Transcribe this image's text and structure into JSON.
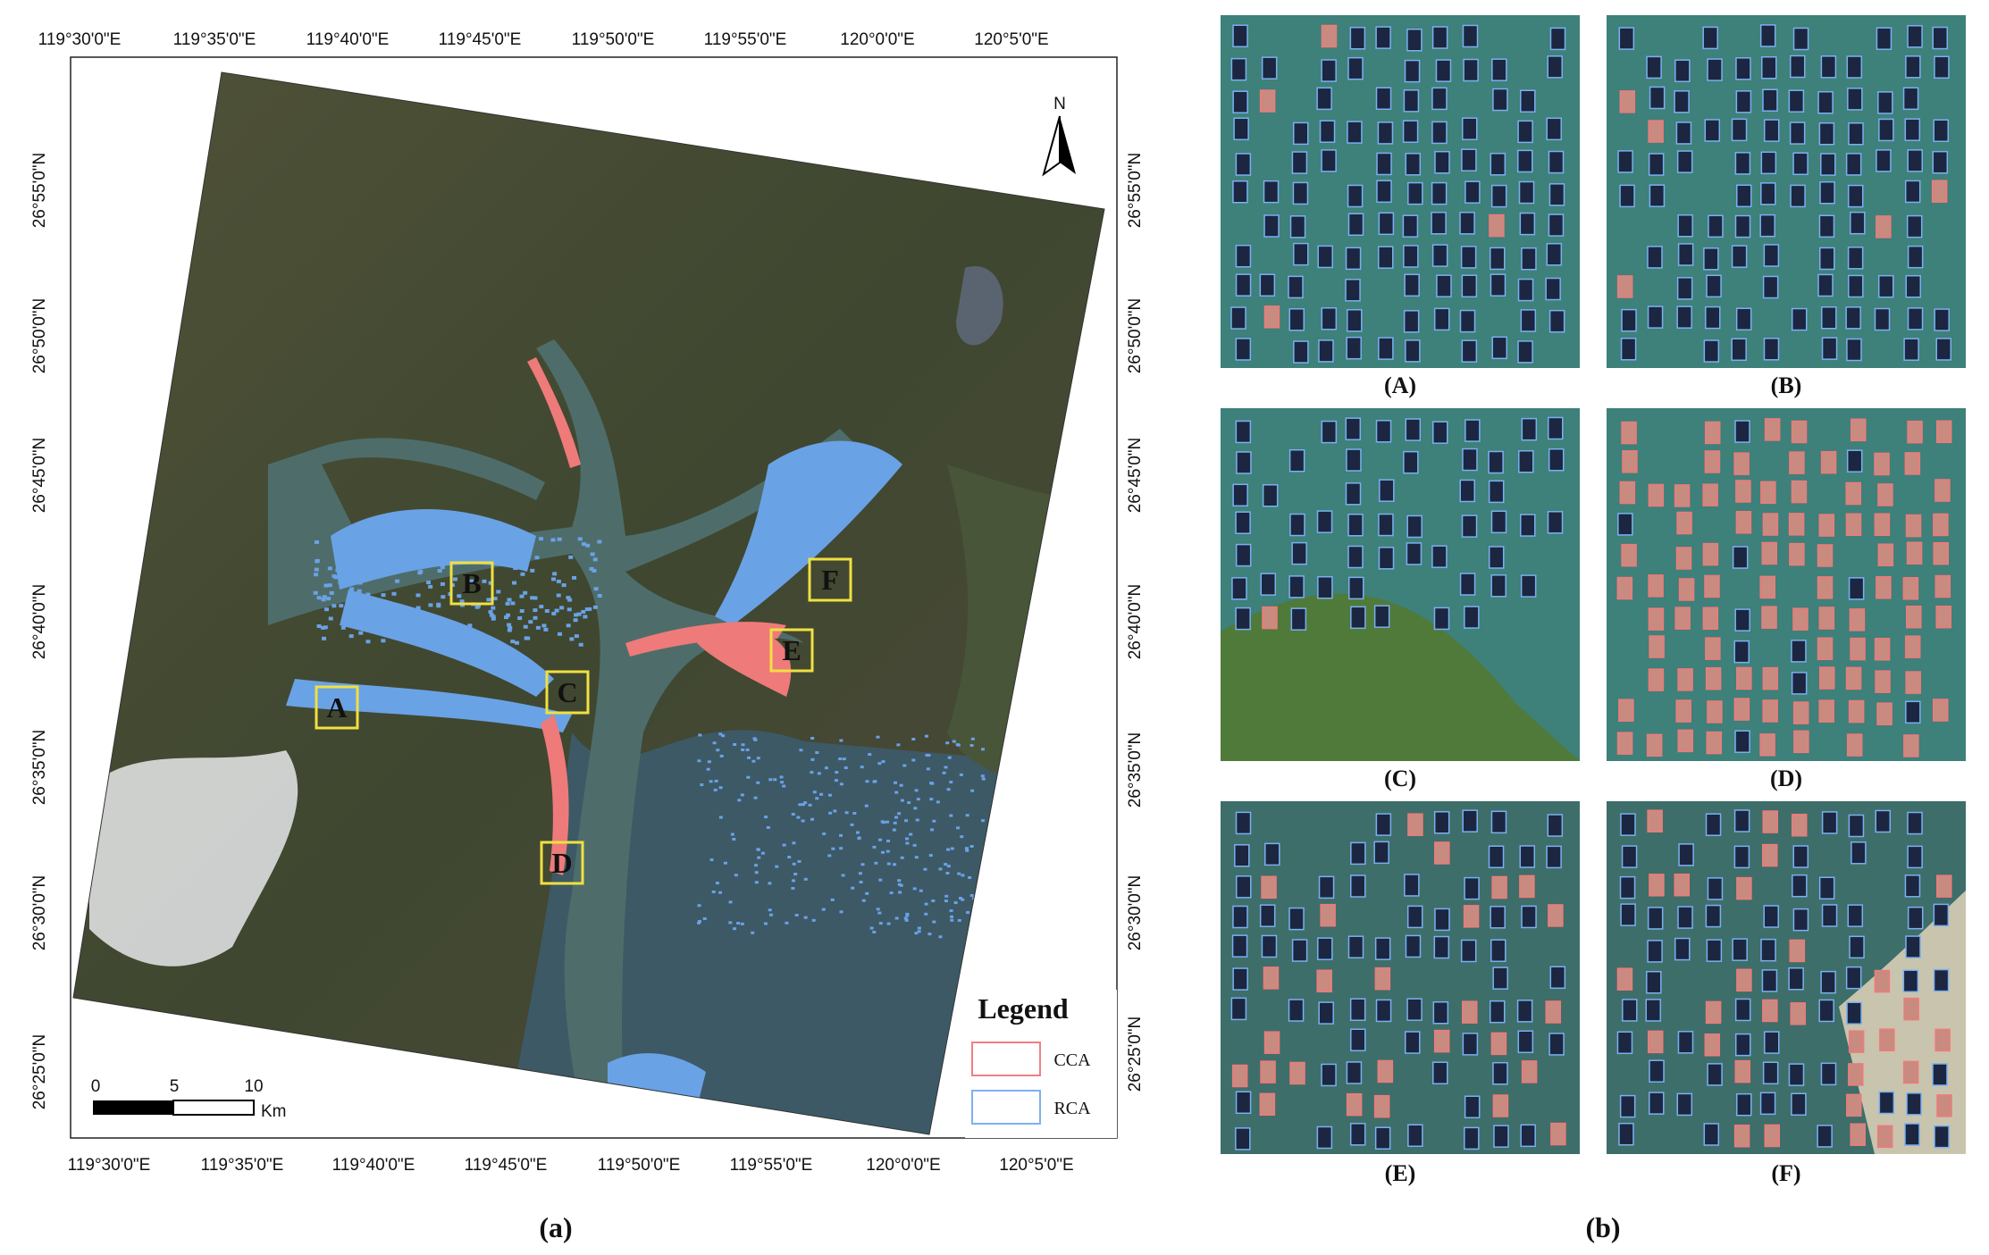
{
  "map": {
    "top_labels": [
      "119°30'0\"E",
      "119°35'0\"E",
      "119°40'0\"E",
      "119°45'0\"E",
      "119°50'0\"E",
      "119°55'0\"E",
      "120°0'0\"E",
      "120°5'0\"E"
    ],
    "bottom_labels": [
      "119°30'0\"E",
      "119°35'0\"E",
      "119°40'0\"E",
      "119°45'0\"E",
      "119°50'0\"E",
      "119°55'0\"E",
      "120°0'0\"E",
      "120°5'0\"E"
    ],
    "left_labels": [
      "26°55'0\"N",
      "26°50'0\"N",
      "26°45'0\"N",
      "26°40'0\"N",
      "26°35'0\"N",
      "26°30'0\"N",
      "26°25'0\"N"
    ],
    "right_labels": [
      "26°55'0\"N",
      "26°50'0\"N",
      "26°45'0\"N",
      "26°40'0\"N",
      "26°35'0\"N",
      "26°30'0\"N",
      "26°25'0\"N"
    ],
    "north": "N",
    "sites": [
      "A",
      "B",
      "C",
      "D",
      "E",
      "F"
    ],
    "legend": {
      "title": "Legend",
      "items": [
        "CCA",
        "RCA"
      ]
    },
    "scale": {
      "ticks": [
        "0",
        "5",
        "10"
      ],
      "unit": "Km"
    },
    "caption": "(a)"
  },
  "panels": {
    "labels": [
      "(A)",
      "(B)",
      "(C)",
      "(D)",
      "(E)",
      "(F)"
    ],
    "caption": "(b)"
  }
}
